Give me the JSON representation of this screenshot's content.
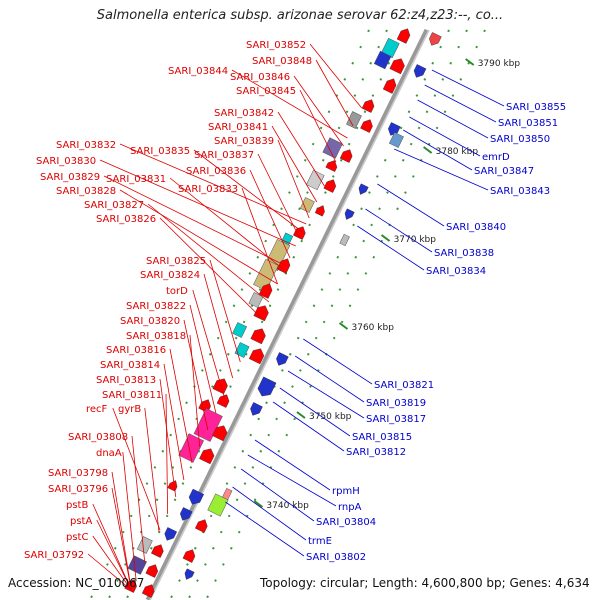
{
  "title": "Salmonella enterica subsp. arizonae serovar 62:z4,z23:--, co...",
  "footer": {
    "accession": "Accession: NC_010067",
    "topology": "Topology: circular; Length: 4,600,800 bp; Genes: 4,634"
  },
  "colors": {
    "forward_label": "#dd0000",
    "reverse_label": "#0000cc",
    "backbone": "#888888"
  },
  "kbp_ticks": [
    "3790 kbp",
    "3780 kbp",
    "3770 kbp",
    "3760 kbp",
    "3750 kbp",
    "3740 kbp"
  ],
  "left_labels": [
    "SARI_03852",
    "SARI_03848",
    "SARI_03844",
    "SARI_03846",
    "SARI_03845",
    "SARI_03842",
    "SARI_03841",
    "SARI_03839",
    "SARI_03832",
    "SARI_03835",
    "SARI_03837",
    "SARI_03830",
    "SARI_03836",
    "SARI_03829",
    "SARI_03831",
    "SARI_03828",
    "SARI_03833",
    "SARI_03827",
    "SARI_03826",
    "SARI_03825",
    "SARI_03824",
    "torD",
    "SARI_03822",
    "SARI_03820",
    "SARI_03818",
    "SARI_03816",
    "SARI_03814",
    "SARI_03813",
    "SARI_03811",
    "recF",
    "gyrB",
    "SARI_03808",
    "dnaA",
    "SARI_03798",
    "SARI_03796",
    "pstB",
    "pstA",
    "pstC",
    "SARI_03792"
  ],
  "right_labels": [
    "SARI_03855",
    "SARI_03851",
    "SARI_03850",
    "emrD",
    "SARI_03847",
    "SARI_03843",
    "SARI_03840",
    "SARI_03838",
    "SARI_03834",
    "SARI_03821",
    "SARI_03819",
    "SARI_03817",
    "SARI_03815",
    "SARI_03812",
    "rpmH",
    "rnpA",
    "SARI_03804",
    "trmE",
    "SARI_03802"
  ]
}
